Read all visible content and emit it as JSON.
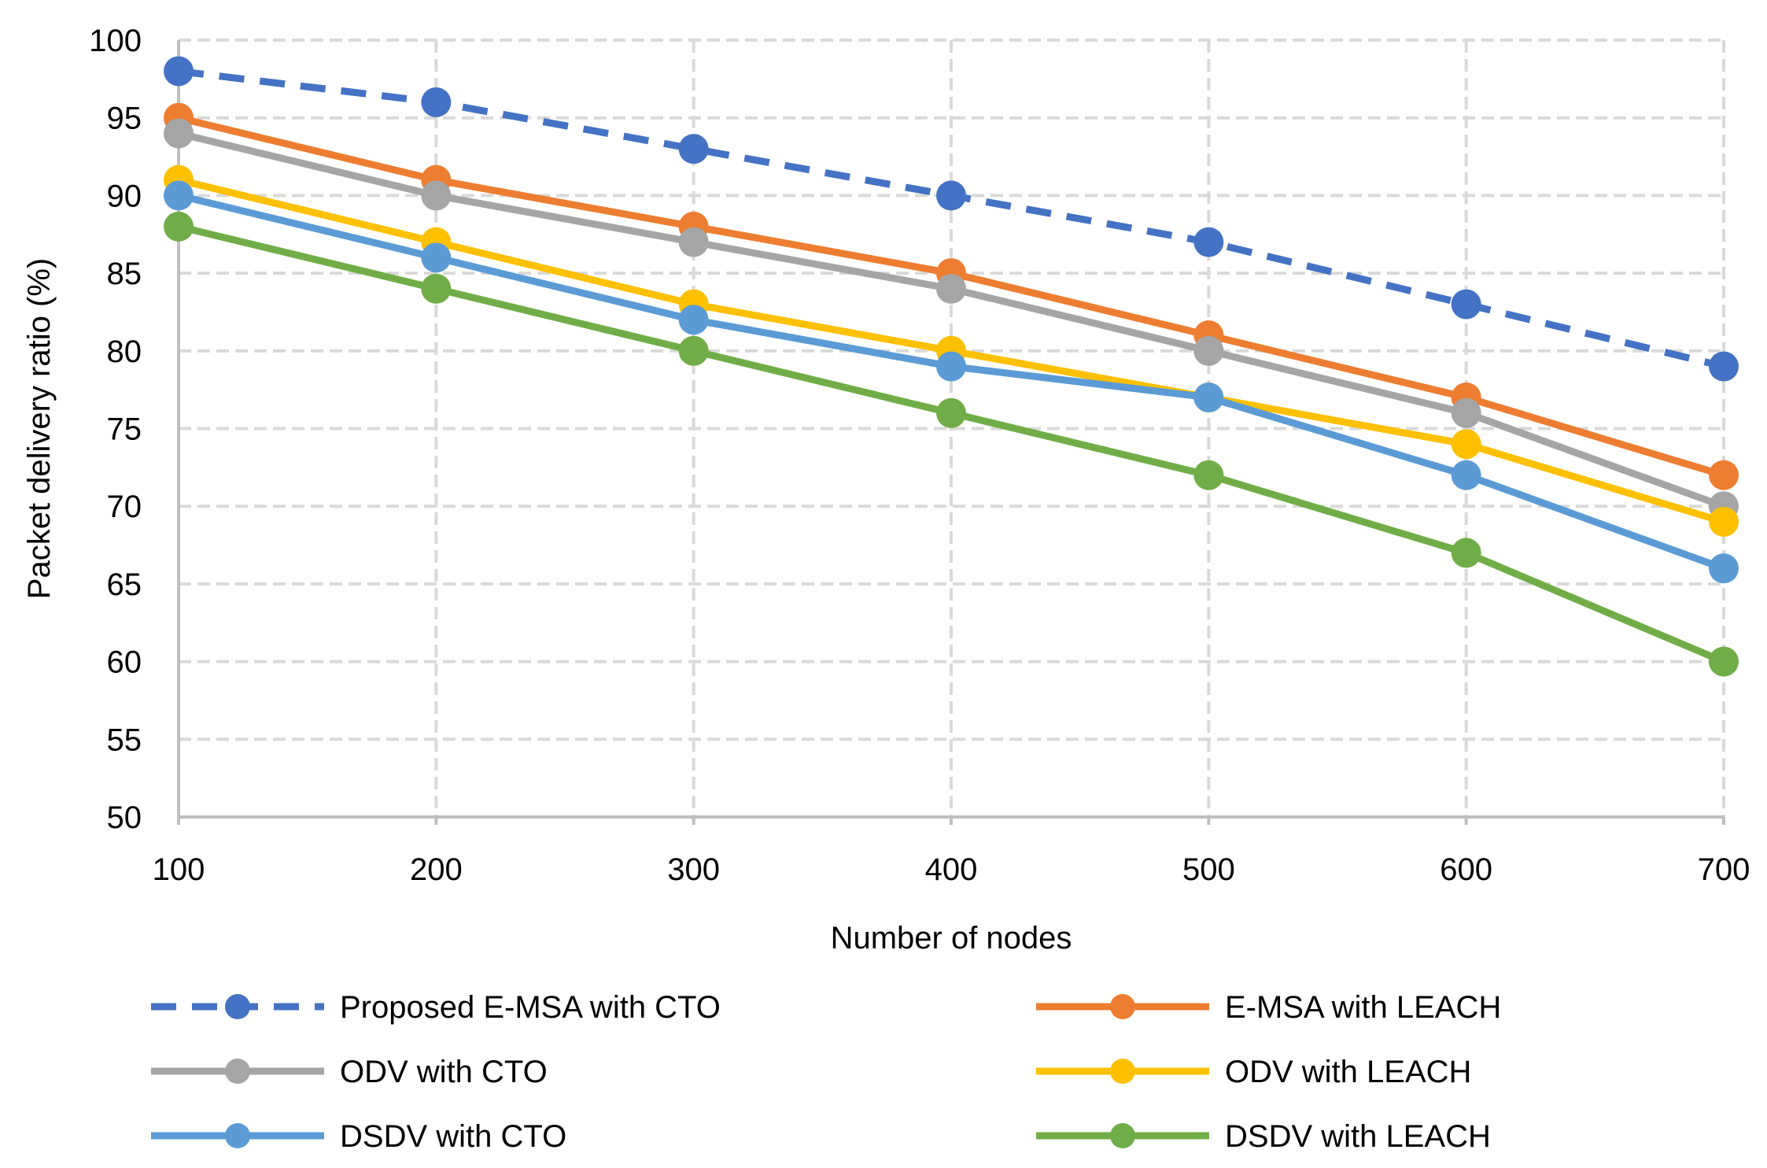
{
  "chart_data": {
    "type": "line",
    "title": "",
    "xlabel": "Number of nodes",
    "ylabel": "Packet delivery ratio (%)",
    "x": [
      100,
      200,
      300,
      400,
      500,
      600,
      700
    ],
    "x_tick_labels": [
      "100",
      "200",
      "300",
      "400",
      "500",
      "600",
      "700"
    ],
    "ylim": [
      50,
      100
    ],
    "y_ticks": [
      50,
      55,
      60,
      65,
      70,
      75,
      80,
      85,
      90,
      95,
      100
    ],
    "y_tick_labels": [
      "50",
      "55",
      "60",
      "65",
      "70",
      "75",
      "80",
      "85",
      "90",
      "95",
      "100"
    ],
    "grid": true,
    "legend_position": "bottom",
    "series": [
      {
        "name": "Proposed E-MSA with CTO",
        "key": "proposed-emsa-cto",
        "color": "#4472C4",
        "dashed": true,
        "values": [
          98,
          96,
          93,
          90,
          87,
          83,
          79
        ]
      },
      {
        "name": "E-MSA with LEACH",
        "key": "emsa-leach",
        "color": "#ED7D31",
        "dashed": false,
        "values": [
          95,
          91,
          88,
          85,
          81,
          77,
          72
        ]
      },
      {
        "name": "ODV with CTO",
        "key": "odv-cto",
        "color": "#A5A5A5",
        "dashed": false,
        "values": [
          94,
          90,
          87,
          84,
          80,
          76,
          70
        ]
      },
      {
        "name": "ODV with LEACH",
        "key": "odv-leach",
        "color": "#FFC000",
        "dashed": false,
        "values": [
          91,
          87,
          83,
          80,
          77,
          74,
          69
        ]
      },
      {
        "name": "DSDV with CTO",
        "key": "dsdv-cto",
        "color": "#5B9BD5",
        "dashed": false,
        "values": [
          90,
          86,
          82,
          79,
          77,
          72,
          66
        ]
      },
      {
        "name": "DSDV with LEACH",
        "key": "dsdv-leach",
        "color": "#70AD47",
        "dashed": false,
        "values": [
          88,
          84,
          80,
          76,
          72,
          67,
          60
        ]
      }
    ]
  }
}
